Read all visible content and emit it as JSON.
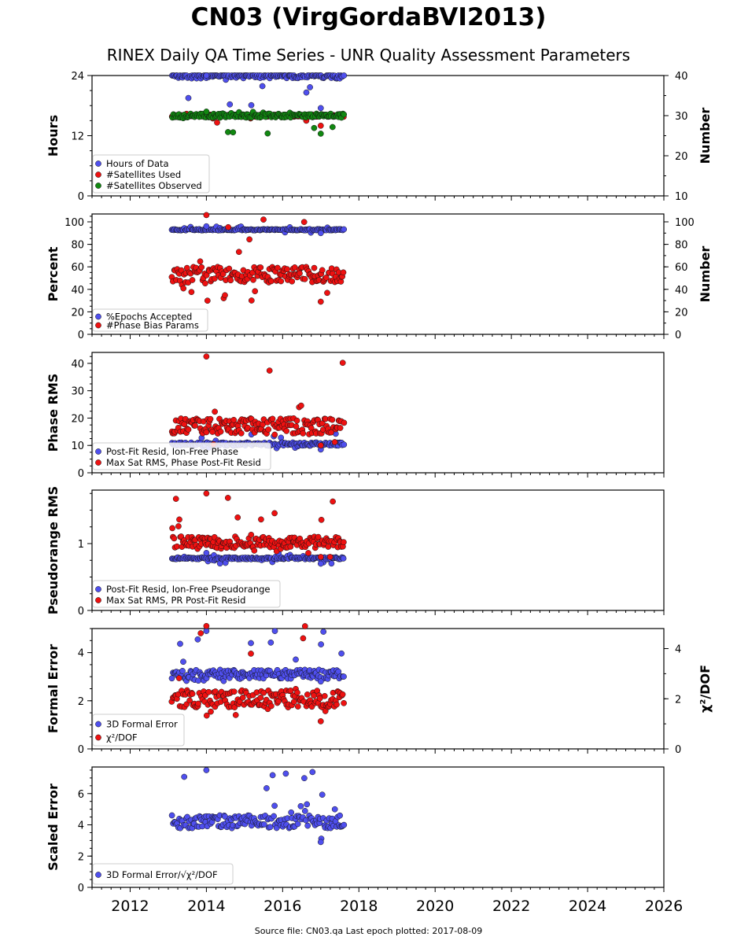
{
  "header": {
    "title": "CN03 (VirgGordaBVI2013)",
    "subtitle": "RINEX Daily QA Time Series - UNR Quality Assessment Parameters"
  },
  "footer": {
    "source_text": "Source file: CN03.qa Last epoch plotted: 2017-08-09"
  },
  "colors": {
    "blue": "#4f4fee",
    "red": "#ee1111",
    "green": "#118811"
  },
  "x_axis": {
    "ticks": [
      "2012",
      "2014",
      "2016",
      "2018",
      "2020",
      "2022",
      "2024",
      "2026"
    ],
    "xlim": [
      2011.0,
      2026.0
    ],
    "data_start": 2013.1,
    "data_end": 2017.6
  },
  "chart_data": [
    {
      "type": "scatter",
      "ylabel": "Hours",
      "ylabel_right": "Number",
      "ylim": [
        0,
        24
      ],
      "yticks": [
        "0",
        "12",
        "24"
      ],
      "ylim_right": [
        10,
        40
      ],
      "yticks_right": [
        "10",
        "20",
        "30",
        "40"
      ],
      "legend_placement": "lower-left",
      "series": [
        {
          "name": "Hours of Data",
          "color": "blue",
          "axis": "left",
          "values": {
            "typical": 24.0,
            "min": 17.5,
            "max": 24.0
          }
        },
        {
          "name": "#Satellites Used",
          "color": "red",
          "axis": "right",
          "values": {
            "typical": 30.0,
            "min": 27.5,
            "max": 30.5
          }
        },
        {
          "name": "#Satellites Observed",
          "color": "green",
          "axis": "right",
          "values": {
            "typical": 30.0,
            "min": 25.5,
            "max": 31.0
          }
        }
      ]
    },
    {
      "type": "scatter",
      "ylabel": "Percent",
      "ylabel_right": "Number",
      "ylim": [
        0,
        107
      ],
      "yticks": [
        "0",
        "20",
        "40",
        "60",
        "80",
        "100"
      ],
      "ylim_right": [
        0,
        107
      ],
      "yticks_right": [
        "0",
        "20",
        "40",
        "60",
        "80",
        "100"
      ],
      "legend_placement": "lower-left",
      "series": [
        {
          "name": "%Epochs Accepted",
          "color": "blue",
          "axis": "left",
          "values": {
            "typical": 93,
            "min": 90,
            "max": 96
          }
        },
        {
          "name": "#Phase Bias Params",
          "color": "red",
          "axis": "right",
          "values": {
            "typical": 53,
            "min": 29,
            "max": 106
          }
        }
      ]
    },
    {
      "type": "scatter",
      "ylabel": "Phase RMS",
      "ylim": [
        0,
        44
      ],
      "yticks": [
        "0",
        "10",
        "20",
        "30",
        "40"
      ],
      "legend_placement": "lower-left",
      "series": [
        {
          "name": "Post-Fit Resid, Ion-Free Phase",
          "color": "blue",
          "axis": "left",
          "values": {
            "typical": 10.5,
            "min": 8.5,
            "max": 15
          }
        },
        {
          "name": "Max Sat RMS, Phase Post-Fit Resid",
          "color": "red",
          "axis": "left",
          "values": {
            "typical": 17,
            "min": 10,
            "max": 42.5
          }
        }
      ]
    },
    {
      "type": "scatter",
      "ylabel": "Pseudorange RMS",
      "ylim": [
        0,
        1.8
      ],
      "yticks": [
        "0",
        "1"
      ],
      "legend_placement": "lower-left",
      "series": [
        {
          "name": "Post-Fit Resid, Ion-Free Pseudorange",
          "color": "blue",
          "axis": "left",
          "values": {
            "typical": 0.78,
            "min": 0.7,
            "max": 0.86
          }
        },
        {
          "name": "Max Sat RMS, PR Post-Fit Resid",
          "color": "red",
          "axis": "left",
          "values": {
            "typical": 1.02,
            "min": 0.8,
            "max": 1.75
          }
        }
      ]
    },
    {
      "type": "scatter",
      "ylabel": "Formal Error",
      "ylabel_right": "χ²/DOF",
      "ylim": [
        0,
        5
      ],
      "yticks": [
        "0",
        "2",
        "4"
      ],
      "ylim_right": [
        0,
        4.8
      ],
      "yticks_right": [
        "0",
        "2",
        "4"
      ],
      "legend_placement": "lower-left",
      "series": [
        {
          "name": "3D Formal Error",
          "color": "blue",
          "axis": "left",
          "values": {
            "typical": 3.1,
            "min": 2.8,
            "max": 4.9
          }
        },
        {
          "name": "χ²/DOF",
          "color": "red",
          "axis": "right",
          "values": {
            "typical": 2.0,
            "min": 1.1,
            "max": 4.9
          }
        }
      ]
    },
    {
      "type": "scatter",
      "ylabel": "Scaled Error",
      "ylim": [
        0,
        7.7
      ],
      "yticks": [
        "0",
        "2",
        "4",
        "6"
      ],
      "legend_placement": "lower-left",
      "series": [
        {
          "name": "3D Formal Error/√χ²/DOF",
          "color": "blue",
          "axis": "left",
          "values": {
            "typical": 4.2,
            "min": 2.9,
            "max": 7.5
          }
        }
      ]
    }
  ]
}
